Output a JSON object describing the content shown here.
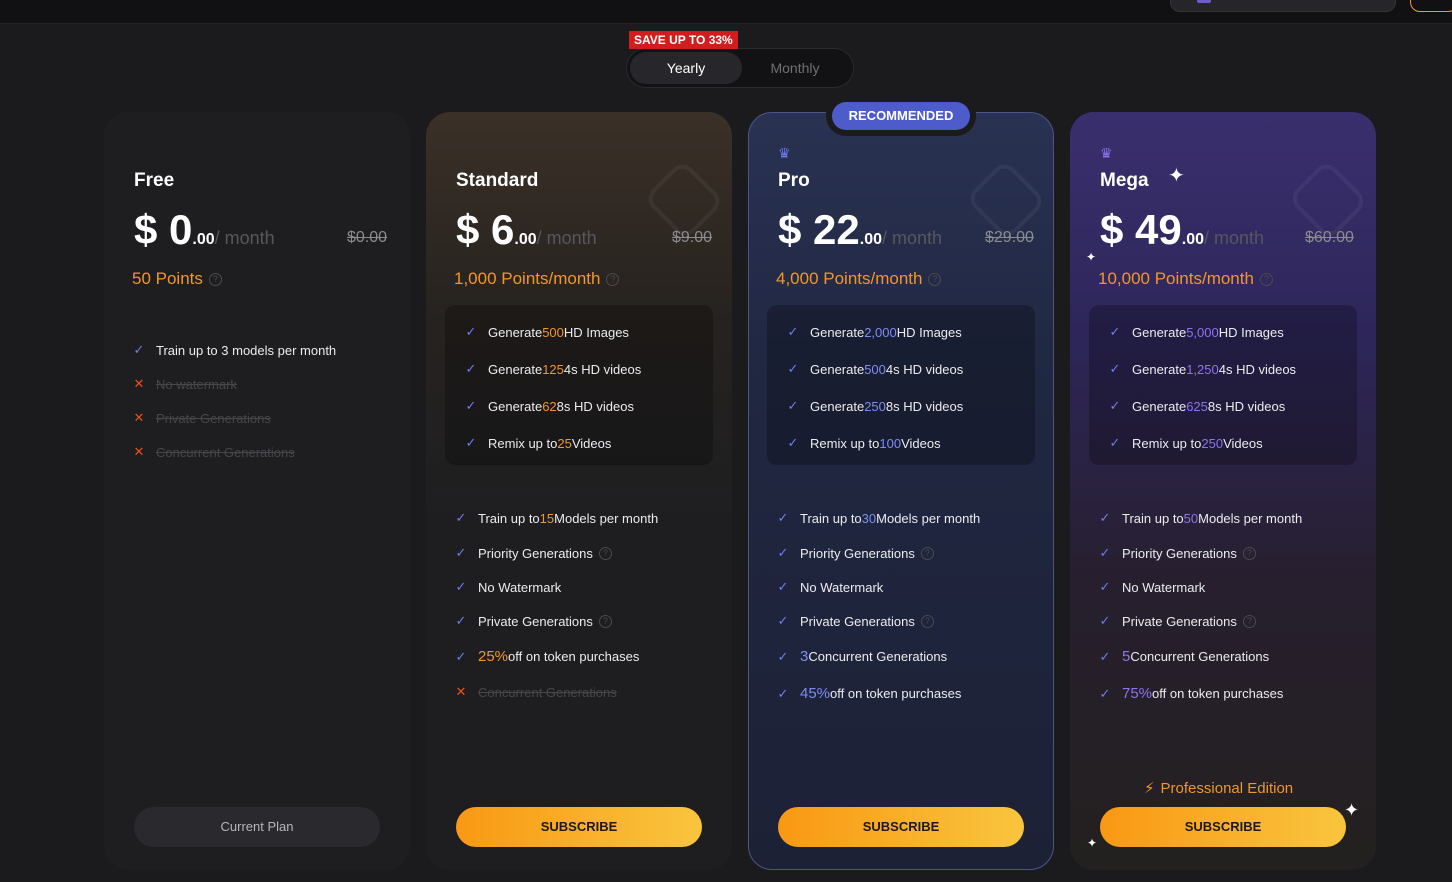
{
  "billing": {
    "save_badge": "SAVE UP TO 33%",
    "yearly": "Yearly",
    "monthly": "Monthly"
  },
  "recommended_label": "RECOMMENDED",
  "icons": {
    "check": "check-icon",
    "cross": "cross-icon",
    "crown": "crown-icon",
    "bolt": "bolt-icon",
    "question": "question-circle-icon",
    "sparkle": "sparkle-icon"
  },
  "colors": {
    "accent_orange": "#f2962a",
    "pro_blue": "#4e5ccb",
    "mega_purple": "#8e73f0",
    "check_blue": "#6e7cf0",
    "cross_red": "#e8501e"
  },
  "plans": [
    {
      "name": "Free",
      "currency": "$",
      "price": "0",
      "cents": ".00",
      "per": "/ month",
      "old_price": "$0.00",
      "points": "50 Points",
      "features": [
        {
          "pre": "Train up to 3 models per month",
          "hl": "",
          "post": "",
          "enabled": true
        },
        {
          "pre": "No watermark",
          "hl": "",
          "post": "",
          "enabled": false
        },
        {
          "pre": "Private Generations",
          "hl": "",
          "post": "",
          "enabled": false
        },
        {
          "pre": "Concurrent Generations",
          "hl": "",
          "post": "",
          "enabled": false
        }
      ],
      "button": "Current Plan"
    },
    {
      "name": "Standard",
      "currency": "$",
      "price": "6",
      "cents": ".00",
      "per": "/ month",
      "old_price": "$9.00",
      "points": "1,000 Points/month",
      "box": [
        {
          "pre": "Generate ",
          "hl": "500",
          "post": " HD Images"
        },
        {
          "pre": "Generate ",
          "hl": "125",
          "post": " 4s HD videos"
        },
        {
          "pre": "Generate ",
          "hl": "62",
          "post": " 8s HD videos"
        },
        {
          "pre": "Remix up to ",
          "hl": "25",
          "post": " Videos"
        }
      ],
      "features": [
        {
          "pre": "Train up to ",
          "hl": "15",
          "post": " Models per month",
          "enabled": true
        },
        {
          "pre": "Priority Generations",
          "hl": "",
          "post": "",
          "enabled": true
        },
        {
          "pre": "No Watermark",
          "hl": "",
          "post": "",
          "enabled": true
        },
        {
          "pre": "Private Generations",
          "hl": "",
          "post": "",
          "enabled": true
        },
        {
          "pre": "",
          "hl": "25%",
          "post": " off on token purchases",
          "enabled": true
        },
        {
          "pre": "Concurrent Generations",
          "hl": "",
          "post": "",
          "enabled": false
        }
      ],
      "button": "SUBSCRIBE"
    },
    {
      "name": "Pro",
      "currency": "$",
      "price": "22",
      "cents": ".00",
      "per": "/ month",
      "old_price": "$29.00",
      "points": "4,000 Points/month",
      "box": [
        {
          "pre": "Generate ",
          "hl": "2,000",
          "post": " HD Images"
        },
        {
          "pre": "Generate ",
          "hl": "500",
          "post": " 4s HD videos"
        },
        {
          "pre": "Generate ",
          "hl": "250",
          "post": " 8s HD videos"
        },
        {
          "pre": "Remix up to ",
          "hl": "100",
          "post": " Videos"
        }
      ],
      "features": [
        {
          "pre": "Train up to ",
          "hl": "30",
          "post": " Models per month",
          "enabled": true
        },
        {
          "pre": "Priority Generations",
          "hl": "",
          "post": "",
          "enabled": true
        },
        {
          "pre": "No Watermark",
          "hl": "",
          "post": "",
          "enabled": true
        },
        {
          "pre": "Private Generations",
          "hl": "",
          "post": "",
          "enabled": true
        },
        {
          "pre": "",
          "hl": "3",
          "post": " Concurrent Generations",
          "enabled": true
        },
        {
          "pre": "",
          "hl": "45%",
          "post": " off on token purchases",
          "enabled": true
        }
      ],
      "button": "SUBSCRIBE"
    },
    {
      "name": "Mega",
      "currency": "$",
      "price": "49",
      "cents": ".00",
      "per": "/ month",
      "old_price": "$60.00",
      "points": "10,000 Points/month",
      "box": [
        {
          "pre": "Generate ",
          "hl": "5,000",
          "post": " HD Images"
        },
        {
          "pre": "Generate ",
          "hl": "1,250",
          "post": " 4s HD videos"
        },
        {
          "pre": "Generate ",
          "hl": "625",
          "post": " 8s HD videos"
        },
        {
          "pre": "Remix up to ",
          "hl": "250",
          "post": " Videos"
        }
      ],
      "features": [
        {
          "pre": "Train up to ",
          "hl": "50",
          "post": " Models per month",
          "enabled": true
        },
        {
          "pre": "Priority Generations",
          "hl": "",
          "post": "",
          "enabled": true
        },
        {
          "pre": "No Watermark",
          "hl": "",
          "post": "",
          "enabled": true
        },
        {
          "pre": "Private Generations",
          "hl": "",
          "post": "",
          "enabled": true
        },
        {
          "pre": "",
          "hl": "5",
          "post": " Concurrent Generations",
          "enabled": true
        },
        {
          "pre": "",
          "hl": "75%",
          "post": " off on token purchases",
          "enabled": true
        }
      ],
      "edition": "Professional Edition",
      "button": "SUBSCRIBE"
    }
  ]
}
